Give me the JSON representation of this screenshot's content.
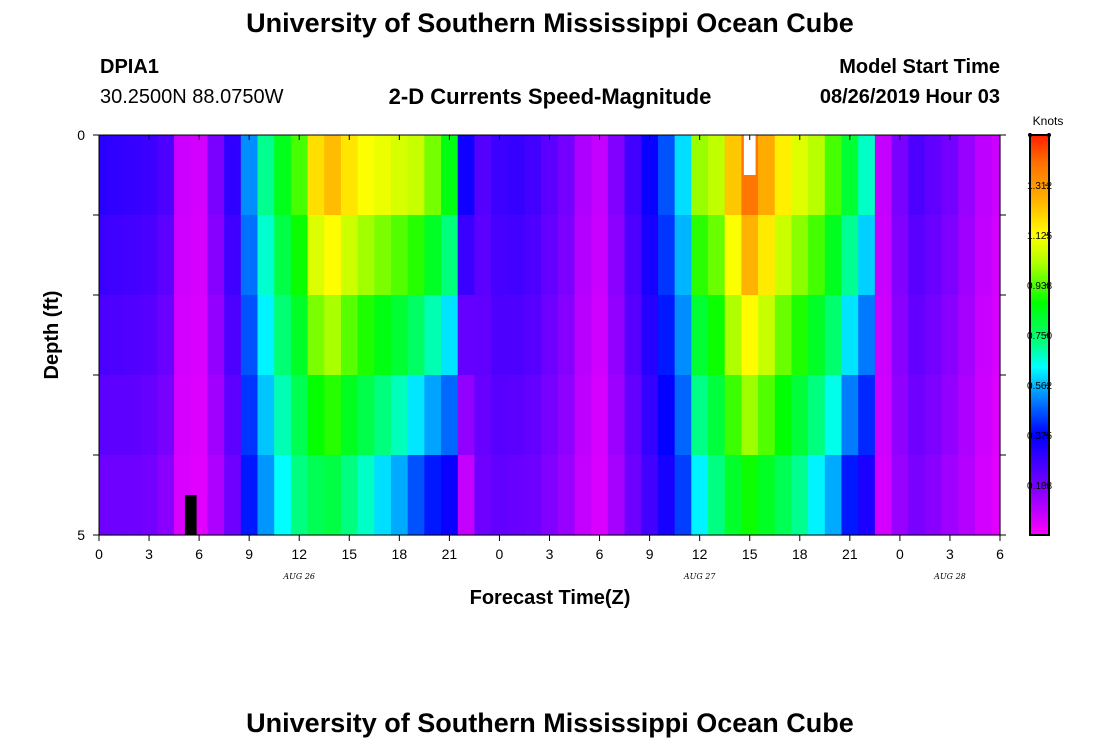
{
  "page": {
    "title": "University of Southern Mississippi Ocean Cube",
    "footer_title": "University of Southern Mississippi Ocean Cube",
    "station_id": "DPIA1",
    "station_coords": "30.2500N 88.0750W",
    "chart_title": "2-D Currents Speed-Magnitude",
    "model_start_label": "Model Start Time",
    "model_start_value": "08/26/2019 Hour 03"
  },
  "chart_data": {
    "type": "heatmap",
    "title": "2-D Currents Speed-Magnitude",
    "xlabel": "Forecast Time(Z)",
    "ylabel": "Depth (ft)",
    "x_tick_labels": [
      "0",
      "3",
      "6",
      "9",
      "12",
      "15",
      "18",
      "21",
      "0",
      "3",
      "6",
      "9",
      "12",
      "15",
      "18",
      "21",
      "0",
      "3",
      "6"
    ],
    "x_tick_hours": [
      0,
      3,
      6,
      9,
      12,
      15,
      18,
      21,
      24,
      27,
      30,
      33,
      36,
      39,
      42,
      45,
      48,
      51,
      54
    ],
    "x_range_hours": [
      0,
      54
    ],
    "date_labels": [
      {
        "text": "AUG 26",
        "hour": 12
      },
      {
        "text": "AUG 27",
        "hour": 36
      },
      {
        "text": "AUG 28",
        "hour": 51
      }
    ],
    "y_tick_labels": [
      "0",
      "5"
    ],
    "y_range": [
      0,
      5
    ],
    "depth_levels": [
      0,
      1,
      2,
      3,
      4,
      5
    ],
    "colorbar": {
      "unit": "Knots",
      "range": [
        0.0,
        1.5
      ],
      "tick_labels": [
        "1.312",
        "1.125",
        "0.938",
        "0.750",
        "0.562",
        "0.375",
        "0.188"
      ],
      "tick_values": [
        1.312,
        1.125,
        0.938,
        0.75,
        0.562,
        0.375,
        0.188
      ],
      "colors": [
        "#ff00ff",
        "#7a00ff",
        "#0000ff",
        "#00a0ff",
        "#00ffff",
        "#00ff80",
        "#00ff00",
        "#b0ff00",
        "#ffff00",
        "#ffb000",
        "#ff7000",
        "#ff2000"
      ],
      "color_stops": [
        0.0,
        0.12,
        0.25,
        0.36,
        0.42,
        0.48,
        0.58,
        0.68,
        0.75,
        0.84,
        0.93,
        1.0
      ]
    },
    "speed_profile": {
      "hours": [
        0,
        1,
        2,
        3,
        4,
        5,
        6,
        7,
        8,
        9,
        10,
        11,
        12,
        13,
        14,
        15,
        16,
        17,
        18,
        19,
        20,
        21,
        22,
        23,
        24,
        25,
        26,
        27,
        28,
        29,
        30,
        31,
        32,
        33,
        34,
        35,
        36,
        37,
        38,
        39,
        40,
        41,
        42,
        43,
        44,
        45,
        46,
        47,
        48,
        49,
        50,
        51,
        52,
        53,
        54
      ],
      "surface": [
        0.31,
        0.3,
        0.29,
        0.28,
        0.25,
        0.07,
        0.06,
        0.18,
        0.3,
        0.52,
        0.71,
        0.84,
        0.93,
        1.18,
        1.24,
        1.17,
        1.12,
        1.1,
        1.07,
        1.05,
        0.97,
        0.85,
        0.35,
        0.24,
        0.28,
        0.29,
        0.27,
        0.23,
        0.19,
        0.11,
        0.08,
        0.17,
        0.27,
        0.36,
        0.46,
        0.6,
        1.0,
        1.04,
        1.22,
        1.38,
        1.27,
        1.15,
        1.08,
        1.03,
        0.93,
        0.81,
        0.67,
        0.08,
        0.18,
        0.25,
        0.22,
        0.19,
        0.14,
        0.09,
        0.07
      ],
      "bottom": [
        0.2,
        0.2,
        0.2,
        0.19,
        0.16,
        0.05,
        0.04,
        0.11,
        0.2,
        0.4,
        0.53,
        0.63,
        0.72,
        0.77,
        0.79,
        0.72,
        0.67,
        0.6,
        0.55,
        0.46,
        0.4,
        0.36,
        0.08,
        0.2,
        0.22,
        0.21,
        0.2,
        0.17,
        0.14,
        0.08,
        0.05,
        0.12,
        0.2,
        0.27,
        0.34,
        0.44,
        0.62,
        0.72,
        0.82,
        0.88,
        0.83,
        0.77,
        0.71,
        0.62,
        0.55,
        0.4,
        0.33,
        0.06,
        0.14,
        0.18,
        0.16,
        0.13,
        0.1,
        0.06,
        0.04
      ]
    },
    "missing_cells": [
      {
        "hour": 5.5,
        "depth_from": 4.5,
        "depth_to": 5.0,
        "color": "#000000"
      },
      {
        "hour": 39.0,
        "depth_from": 0.0,
        "depth_to": 0.5,
        "color": "#ffffff"
      }
    ]
  }
}
